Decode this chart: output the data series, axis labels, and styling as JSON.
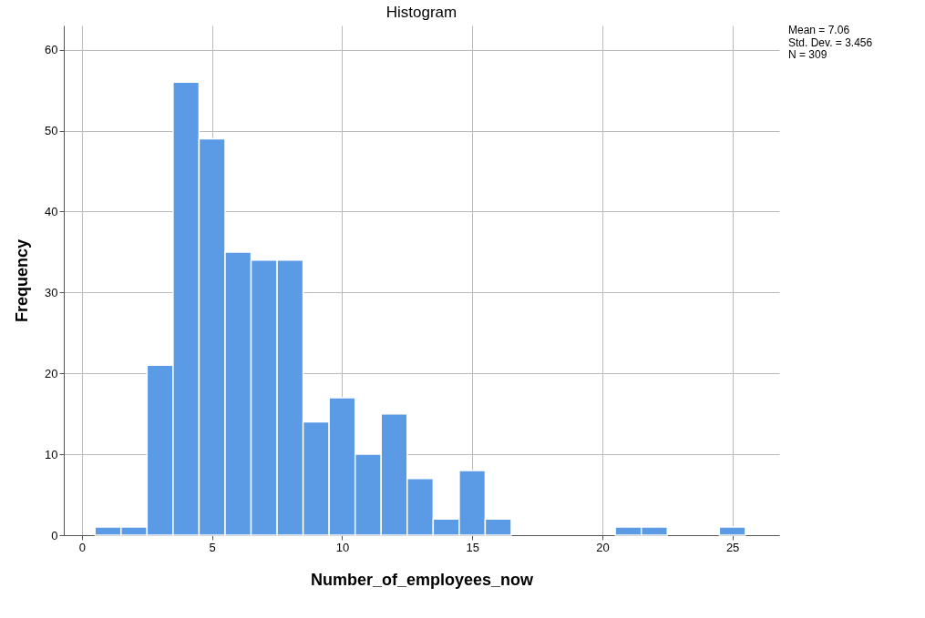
{
  "chart_data": {
    "type": "histogram",
    "title": "Histogram",
    "xlabel": "Number_of_employees_now",
    "ylabel": "Frequency",
    "bins": [
      0.5,
      1.5,
      2.5,
      3.5,
      4.5,
      5.5,
      6.5,
      7.5,
      8.5,
      9.5,
      10.5,
      11.5,
      12.5,
      13.5,
      14.5,
      15.5,
      16.5,
      17.5,
      18.5,
      19.5,
      20.5,
      21.5,
      22.5,
      23.5,
      24.5,
      25.5
    ],
    "values": [
      1,
      1,
      21,
      56,
      49,
      35,
      34,
      34,
      14,
      17,
      10,
      15,
      7,
      2,
      8,
      2,
      0,
      0,
      0,
      0,
      1,
      1,
      0,
      0,
      1
    ],
    "color": "#5b9be6",
    "xlim": [
      -0.7,
      26.8
    ],
    "ylim": [
      0,
      63
    ],
    "xticks": [
      0,
      5,
      10,
      15,
      20,
      25
    ],
    "yticks": [
      0,
      10,
      20,
      30,
      40,
      50,
      60
    ],
    "grid": true,
    "annotations": [
      "Mean = 7.06",
      "Std. Dev. = 3.456",
      "N = 309"
    ]
  }
}
